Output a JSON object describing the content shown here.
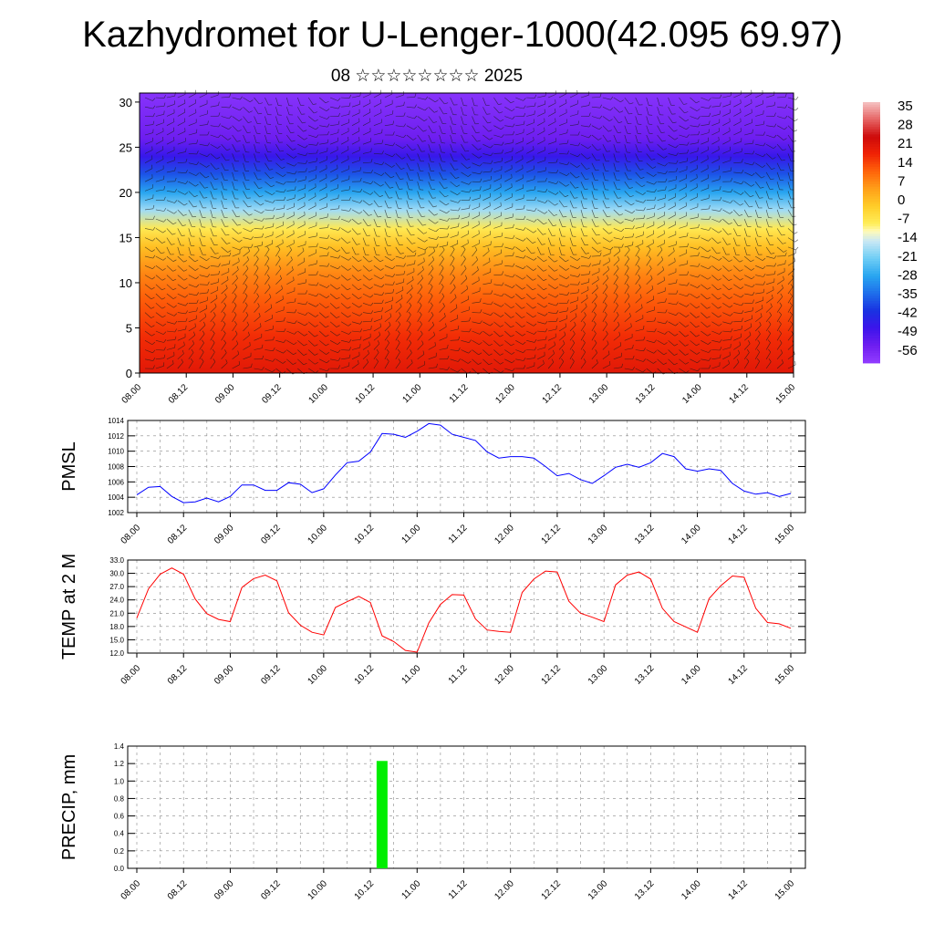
{
  "header": {
    "title": "Kazhydromet for U-Lenger-1000(42.095 69.97)",
    "subtitle": "08 ☆☆☆☆☆☆☆☆ 2025"
  },
  "time_ticks": [
    "08.00",
    "08.12",
    "09.00",
    "09.12",
    "10.00",
    "10.12",
    "11.00",
    "11.12",
    "12.00",
    "12.12",
    "13.00",
    "13.12",
    "14.00",
    "14.12",
    "15.00"
  ],
  "chart_data": [
    {
      "type": "heatmap",
      "title": "",
      "y_ticks": [
        "0",
        "5",
        "10",
        "15",
        "20",
        "25",
        "30"
      ],
      "ylim": [
        0,
        31
      ],
      "xlim": [
        0,
        168
      ],
      "x_unit_note": "hours from 08.00",
      "colorbar": {
        "labels": [
          "35",
          "28",
          "21",
          "14",
          "7",
          "0",
          "-7",
          "-14",
          "-21",
          "-28",
          "-35",
          "-42",
          "-49",
          "-56"
        ],
        "range": [
          -63,
          42
        ]
      },
      "profile": {
        "levels": [
          0,
          4,
          8,
          11,
          14,
          16,
          18,
          20,
          22,
          24,
          26,
          28,
          31
        ],
        "temps": [
          24,
          20,
          15,
          10,
          2,
          -6,
          -17,
          -28,
          -38,
          -48,
          -56,
          -58,
          -61
        ]
      },
      "overlay": "wind barbs",
      "grid": false
    },
    {
      "type": "line",
      "ylabel": "PMSL",
      "ylim": [
        1002,
        1014
      ],
      "y_ticks": [
        "1002",
        "1004",
        "1006",
        "1008",
        "1010",
        "1012",
        "1014"
      ],
      "x_step_hours": 3,
      "series": [
        {
          "color": "#0000ff",
          "values": [
            1004.3,
            1005.3,
            1005.4,
            1004.1,
            1003.3,
            1003.4,
            1003.9,
            1003.4,
            1004.1,
            1005.6,
            1005.6,
            1004.9,
            1004.9,
            1005.9,
            1005.7,
            1004.6,
            1005.1,
            1006.9,
            1008.5,
            1008.7,
            1009.9,
            1012.3,
            1012.2,
            1011.8,
            1012.6,
            1013.6,
            1013.4,
            1012.2,
            1011.8,
            1011.4,
            1009.9,
            1009.1,
            1009.3,
            1009.3,
            1009.1,
            1008.0,
            1006.8,
            1007.1,
            1006.3,
            1005.8,
            1006.8,
            1007.9,
            1008.3,
            1007.9,
            1008.5,
            1009.7,
            1009.3,
            1007.7,
            1007.4,
            1007.7,
            1007.5,
            1005.8,
            1004.8,
            1004.4,
            1004.6,
            1004.1,
            1004.5
          ]
        }
      ],
      "grid": true
    },
    {
      "type": "line",
      "ylabel": "TEMP at 2 M",
      "ylim": [
        12.0,
        33.0
      ],
      "y_ticks": [
        "12.0",
        "15.0",
        "18.0",
        "21.0",
        "24.0",
        "27.0",
        "30.0",
        "33.0"
      ],
      "x_step_hours": 3,
      "series": [
        {
          "color": "#ff0000",
          "values": [
            19.9,
            26.5,
            29.8,
            31.2,
            29.8,
            24.2,
            20.9,
            19.6,
            19.1,
            26.8,
            28.8,
            29.6,
            28.3,
            21.1,
            18.3,
            16.7,
            16.1,
            22.3,
            23.6,
            24.8,
            23.4,
            15.9,
            14.6,
            12.6,
            12.2,
            18.8,
            23.0,
            25.2,
            25.1,
            19.7,
            17.2,
            16.9,
            16.7,
            25.7,
            28.7,
            30.5,
            30.3,
            23.7,
            21.0,
            20.1,
            19.1,
            27.4,
            29.6,
            30.3,
            28.7,
            22.1,
            19.1,
            17.9,
            16.7,
            24.3,
            27.2,
            29.4,
            29.1,
            22.1,
            18.9,
            18.6,
            17.6
          ]
        }
      ],
      "grid": true
    },
    {
      "type": "bar",
      "ylabel": "PRECIP, mm",
      "ylim": [
        0.0,
        1.4
      ],
      "y_ticks": [
        "0.0",
        "0.2",
        "0.4",
        "0.6",
        "0.8",
        "1.0",
        "1.2",
        "1.4"
      ],
      "bars": [
        {
          "x_hours": 63,
          "value": 1.23,
          "color": "#00ee00"
        }
      ],
      "grid": true
    }
  ]
}
